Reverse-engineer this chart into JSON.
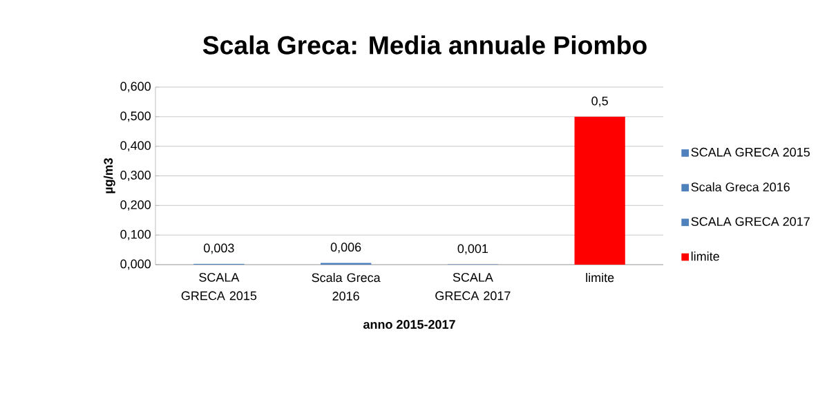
{
  "chart_data": {
    "type": "bar",
    "title": "Scala Greca: Media annuale Piombo",
    "xlabel": "anno 2015-2017",
    "ylabel": "µg/m3",
    "categories": [
      "SCALA GRECA 2015",
      "Scala Greca 2016",
      "SCALA GRECA 2017",
      "limite"
    ],
    "series": [
      {
        "name": "SCALA GRECA 2015",
        "color": "#4f81bd",
        "values": [
          0.003,
          null,
          null,
          null
        ],
        "value_labels": [
          "0,003",
          null,
          null,
          null
        ]
      },
      {
        "name": "Scala Greca 2016",
        "color": "#4f81bd",
        "values": [
          null,
          0.006,
          null,
          null
        ],
        "value_labels": [
          null,
          "0,006",
          null,
          null
        ]
      },
      {
        "name": "SCALA GRECA 2017",
        "color": "#4f81bd",
        "values": [
          null,
          null,
          0.001,
          null
        ],
        "value_labels": [
          null,
          null,
          "0,001",
          null
        ]
      },
      {
        "name": "limite",
        "color": "#ff0000",
        "values": [
          null,
          null,
          null,
          0.5
        ],
        "value_labels": [
          null,
          null,
          null,
          "0,5"
        ]
      }
    ],
    "ylim": [
      0,
      0.6
    ],
    "yticks": [
      {
        "value": 0,
        "label": "0,000"
      },
      {
        "value": 0.1,
        "label": "0,100"
      },
      {
        "value": 0.2,
        "label": "0,200"
      },
      {
        "value": 0.3,
        "label": "0,300"
      },
      {
        "value": 0.4,
        "label": "0,400"
      },
      {
        "value": 0.5,
        "label": "0,500"
      },
      {
        "value": 0.6,
        "label": "0,600"
      }
    ],
    "grid": "y",
    "legend": "right"
  }
}
